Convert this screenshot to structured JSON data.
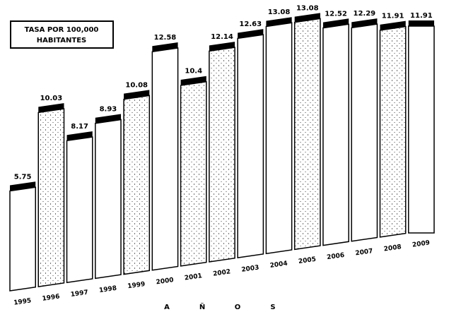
{
  "chart_data": {
    "type": "bar",
    "title": "",
    "legend": {
      "lines": [
        "TASA POR 100,000",
        "HABITANTES"
      ],
      "placement": "top-left"
    },
    "categories": [
      "1995",
      "1996",
      "1997",
      "1998",
      "1999",
      "2000",
      "2001",
      "2002",
      "2003",
      "2004",
      "2005",
      "2006",
      "2007",
      "2008",
      "2009"
    ],
    "series": [
      {
        "values": [
          5.75,
          10.03,
          8.17,
          8.93,
          10.08,
          12.58,
          10.4,
          12.14,
          12.63,
          13.08,
          13.08,
          12.52,
          12.29,
          11.91,
          11.91
        ],
        "labels": [
          "5.75",
          "10.03",
          "8.17",
          "8.93",
          "10.08",
          "12.58",
          "10.4",
          "12.14",
          "12.63",
          "13.08",
          "13.08",
          "12.52",
          "12.29",
          "11.91",
          "11.91"
        ]
      }
    ],
    "xlabel_letters": [
      "A",
      "Ñ",
      "O",
      "S"
    ],
    "ylim": [
      0,
      14
    ],
    "grid": false,
    "bar_fill": "#ffffff",
    "bar_stroke": "#000000",
    "bar_top_color": "#000000",
    "stipple_color": "#000000"
  }
}
